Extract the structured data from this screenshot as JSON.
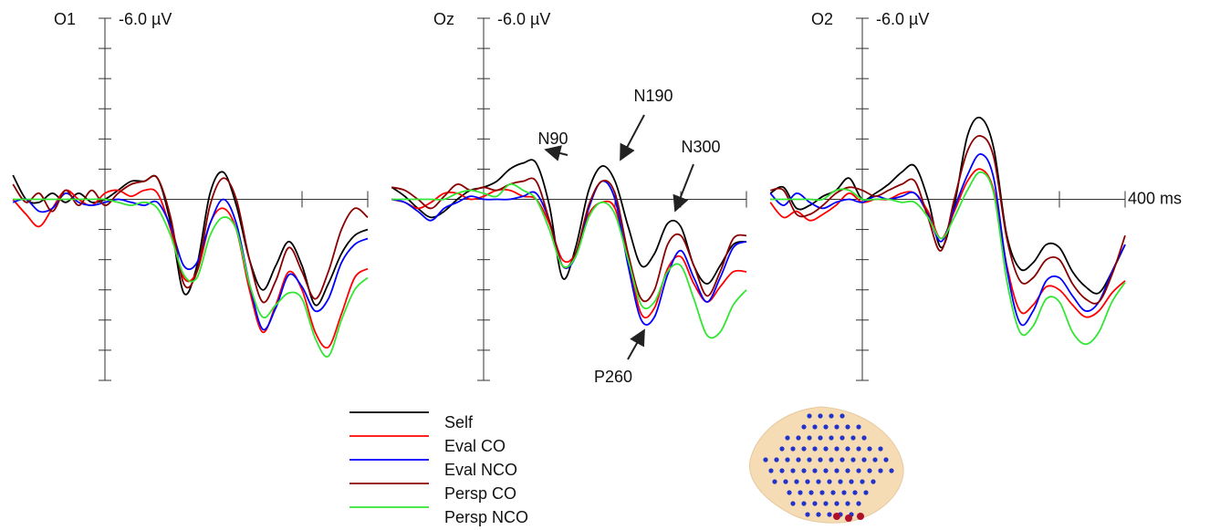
{
  "chart_data": [
    {
      "type": "line",
      "title": "O1",
      "x": [
        -140,
        -120,
        -100,
        -80,
        -60,
        -40,
        -20,
        0,
        20,
        40,
        60,
        80,
        100,
        120,
        140,
        160,
        180,
        200,
        220,
        240,
        260,
        280,
        300,
        320,
        340,
        360,
        380,
        400
      ],
      "xlim": [
        -140,
        400
      ],
      "xticks": [
        300,
        400
      ],
      "ylim": [
        -6,
        6
      ],
      "y_inverted": true,
      "yticks": [
        {
          "value": -6,
          "label": "-6.0 µV"
        },
        -5,
        -4,
        -3,
        -2,
        -1,
        1,
        2,
        3,
        4,
        5,
        6
      ],
      "series": [
        {
          "name": "Self",
          "color": "#000000",
          "values": [
            -0.8,
            0,
            0.1,
            -0.2,
            0.1,
            -0.2,
            0.1,
            0,
            -0.3,
            -0.6,
            -0.6,
            -0.7,
            0.8,
            3.1,
            2.2,
            -0.2,
            -0.9,
            0.2,
            2.0,
            3.0,
            2.2,
            1.4,
            2.2,
            3.5,
            2.8,
            1.8,
            1.2,
            1.0
          ]
        },
        {
          "name": "Eval CO",
          "color": "#ff0000",
          "values": [
            0,
            0.5,
            0.9,
            0.3,
            -0.3,
            0,
            0.2,
            -0.2,
            -0.3,
            -0.1,
            -0.3,
            -0.2,
            1.0,
            2.6,
            2.4,
            0.8,
            0.3,
            1.0,
            3.0,
            4.4,
            3.5,
            2.4,
            3.0,
            4.4,
            4.9,
            3.8,
            2.6,
            2.3
          ]
        },
        {
          "name": "Eval NCO",
          "color": "#0000ff",
          "values": [
            0.1,
            0,
            0.4,
            0.3,
            -0.2,
            0.1,
            0.2,
            0.1,
            0,
            0.1,
            0.2,
            0.1,
            0.9,
            2.2,
            2.1,
            0.8,
            0.0,
            0.8,
            2.8,
            4.3,
            3.6,
            2.5,
            2.9,
            3.7,
            3.3,
            2.1,
            1.5,
            1.3
          ]
        },
        {
          "name": "Persp CO",
          "color": "#8b0000",
          "values": [
            -0.5,
            0.1,
            -0.2,
            0.4,
            -0.3,
            0.2,
            -0.3,
            0.2,
            -0.2,
            -0.5,
            -0.6,
            -0.7,
            0.6,
            2.8,
            2.4,
            0.2,
            -0.7,
            0.0,
            2.0,
            3.4,
            2.7,
            1.6,
            2.4,
            3.3,
            2.4,
            1.0,
            0.3,
            0.6
          ]
        },
        {
          "name": "Persp NCO",
          "color": "#33e633",
          "values": [
            0,
            0,
            0,
            0,
            0,
            0,
            0,
            0,
            0.1,
            0.2,
            0.1,
            0.3,
            1.2,
            2.5,
            2.6,
            1.2,
            0.6,
            1.0,
            2.8,
            3.9,
            3.5,
            3.1,
            3.3,
            4.6,
            5.2,
            4.0,
            3.0,
            2.6
          ]
        }
      ]
    },
    {
      "type": "line",
      "title": "Oz",
      "x": [
        -140,
        -120,
        -100,
        -80,
        -60,
        -40,
        -20,
        0,
        20,
        40,
        60,
        80,
        100,
        120,
        140,
        160,
        180,
        200,
        220,
        240,
        260,
        280,
        300,
        320,
        340,
        360,
        380,
        400
      ],
      "xlim": [
        -140,
        400
      ],
      "xticks": [
        200,
        300,
        400
      ],
      "ylim": [
        -6,
        6
      ],
      "y_inverted": true,
      "yticks": [
        {
          "value": -6,
          "label": "-6.0 µV"
        },
        -5,
        -4,
        -3,
        -2,
        -1,
        1,
        2,
        3,
        4,
        5,
        6
      ],
      "annotations": [
        "N90",
        "N190",
        "N300",
        "P260"
      ],
      "series": [
        {
          "color": "#000000",
          "values": [
            -0.4,
            -0.1,
            0.3,
            0.6,
            0.4,
            0.0,
            -0.3,
            -0.4,
            -0.6,
            -1.0,
            -1.2,
            -1.2,
            0.2,
            2.6,
            1.6,
            -0.3,
            -1.1,
            -0.6,
            0.9,
            2.2,
            1.8,
            0.8,
            0.9,
            2.2,
            2.8,
            2.2,
            1.5,
            1.4
          ]
        },
        {
          "color": "#ff0000",
          "values": [
            0,
            0.1,
            0.3,
            0.1,
            -0.2,
            -0.2,
            0,
            -0.1,
            -0.3,
            -0.3,
            -0.1,
            0,
            0.8,
            2.0,
            1.8,
            0.5,
            0.1,
            0.3,
            2.0,
            3.8,
            3.6,
            2.3,
            1.9,
            2.8,
            3.4,
            2.9,
            2.4,
            2.4
          ]
        },
        {
          "color": "#0000ff",
          "values": [
            0,
            0.1,
            0.4,
            0.7,
            0.3,
            0.1,
            -0.1,
            0,
            0,
            0,
            -0.1,
            -0.2,
            0.7,
            2.2,
            1.9,
            0.3,
            -0.6,
            0,
            2.2,
            4.0,
            3.9,
            2.5,
            1.7,
            2.6,
            3.4,
            2.6,
            1.6,
            1.4
          ]
        },
        {
          "color": "#8b0000",
          "values": [
            -0.4,
            -0.3,
            0,
            0.3,
            -0.1,
            -0.5,
            -0.3,
            -0.4,
            -0.3,
            -0.5,
            -0.6,
            -0.6,
            0.7,
            2.2,
            1.8,
            0.2,
            -0.6,
            -0.2,
            1.8,
            3.3,
            3.0,
            1.5,
            1.2,
            2.2,
            3.2,
            2.4,
            1.3,
            1.2
          ]
        },
        {
          "color": "#33e633",
          "values": [
            0,
            0,
            0,
            0,
            0,
            -0.2,
            -0.3,
            -0.2,
            -0.1,
            -0.5,
            -0.3,
            0,
            1.0,
            2.2,
            1.9,
            0.6,
            0.1,
            0.5,
            2.0,
            3.5,
            3.4,
            2.4,
            2.2,
            3.3,
            4.5,
            4.4,
            3.5,
            3.0
          ]
        }
      ]
    },
    {
      "type": "line",
      "title": "O2",
      "x": [
        -140,
        -120,
        -100,
        -80,
        -60,
        -40,
        -20,
        0,
        20,
        40,
        60,
        80,
        100,
        120,
        140,
        160,
        180,
        200,
        220,
        240,
        260,
        280,
        300,
        320,
        340,
        360,
        380,
        400
      ],
      "xlim": [
        -140,
        400
      ],
      "xticks": [
        300,
        {
          "value": 400,
          "label": "400 ms"
        }
      ],
      "ylim": [
        -6,
        6
      ],
      "y_inverted": true,
      "yticks": [
        {
          "value": -6,
          "label": "-6.0 µV"
        },
        -5,
        -4,
        -3,
        -2,
        -1,
        1,
        2,
        3,
        4,
        5,
        6
      ],
      "series": [
        {
          "color": "#000000",
          "values": [
            -0.2,
            -0.4,
            0.3,
            0.2,
            -0.1,
            -0.3,
            -0.7,
            0,
            -0.2,
            -0.5,
            -0.9,
            -1.1,
            0,
            1.6,
            0.2,
            -2.1,
            -2.7,
            -1.7,
            1.2,
            2.3,
            2.1,
            1.5,
            1.6,
            2.4,
            2.9,
            3.1,
            2.4,
            1.5
          ]
        },
        {
          "color": "#ff0000",
          "values": [
            0.1,
            0.6,
            0.4,
            0.7,
            0.5,
            0.2,
            -0.2,
            0.1,
            0,
            0,
            -0.2,
            -0.2,
            0.4,
            1.3,
            0.4,
            -0.6,
            -1.0,
            -0.3,
            2.2,
            3.7,
            3.5,
            2.9,
            3.0,
            3.5,
            3.9,
            3.7,
            3.1,
            2.7
          ]
        },
        {
          "color": "#0000ff",
          "values": [
            -0.2,
            0.2,
            -0.2,
            0.1,
            0.3,
            0.1,
            0.0,
            0.1,
            -0.1,
            0,
            -0.1,
            -0.2,
            0.5,
            1.4,
            0.3,
            -0.8,
            -1.5,
            -0.7,
            2.3,
            4.1,
            3.7,
            2.7,
            2.6,
            3.2,
            3.7,
            3.4,
            2.4,
            1.5
          ]
        },
        {
          "color": "#8b0000",
          "values": [
            -0.3,
            -0.3,
            0.5,
            0.5,
            0.2,
            -0.2,
            -0.4,
            -0.3,
            -0.1,
            -0.3,
            -0.5,
            -0.6,
            0.6,
            1.7,
            0.0,
            -1.6,
            -2.1,
            -1.4,
            1.3,
            2.7,
            2.6,
            2.0,
            2.0,
            2.8,
            3.3,
            3.4,
            2.5,
            1.2
          ]
        },
        {
          "color": "#33e633",
          "values": [
            0,
            0,
            0,
            0,
            0,
            -0.3,
            -0.3,
            0,
            0,
            0,
            0.1,
            0.1,
            0.6,
            1.3,
            0.6,
            -0.3,
            -0.9,
            -0.2,
            2.7,
            4.4,
            4.2,
            3.3,
            3.4,
            4.4,
            4.8,
            4.4,
            3.4,
            2.75
          ]
        }
      ]
    }
  ]
}
